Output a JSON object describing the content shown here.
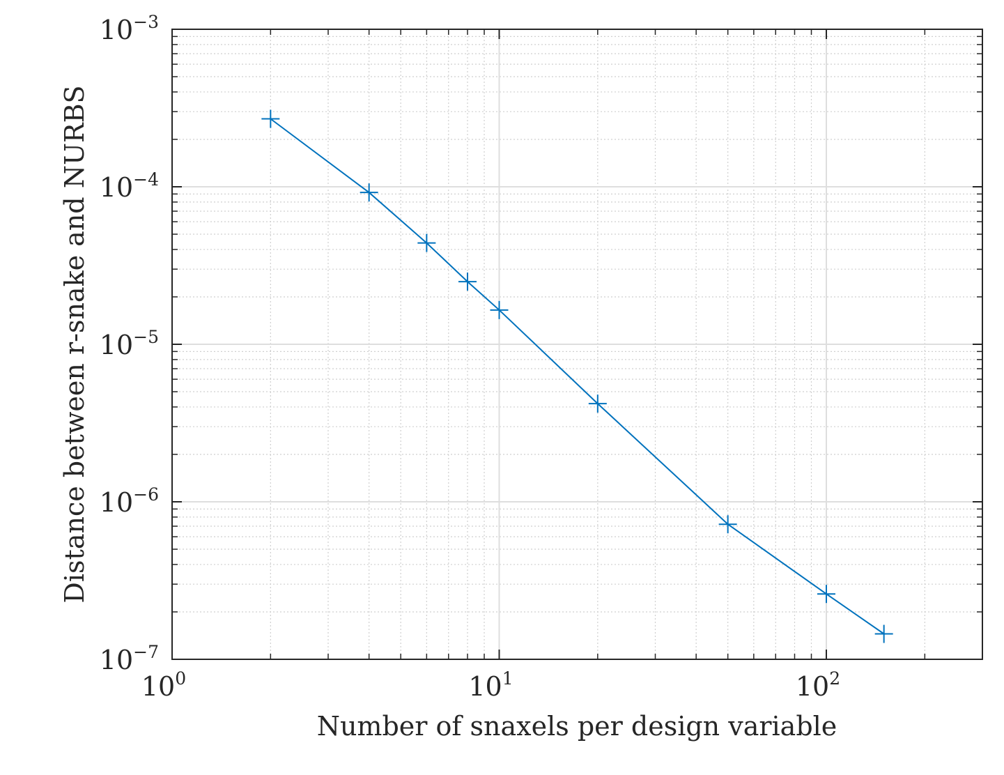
{
  "chart_data": {
    "type": "line",
    "xlabel": "Number of snaxels per design variable",
    "ylabel": "Distance between r-snake and NURBS",
    "x_scale": "log",
    "y_scale": "log",
    "xlim": [
      1,
      300
    ],
    "ylim": [
      1e-07,
      0.001
    ],
    "grid": "major and minor",
    "marker": "+",
    "series_color": "#0072BD",
    "x_ticks": [
      {
        "value": 1,
        "base": "10",
        "exp": "0"
      },
      {
        "value": 10,
        "base": "10",
        "exp": "1"
      },
      {
        "value": 100,
        "base": "10",
        "exp": "2"
      }
    ],
    "y_ticks": [
      {
        "value": 1e-07,
        "base": "10",
        "exp": "−7"
      },
      {
        "value": 1e-06,
        "base": "10",
        "exp": "−6"
      },
      {
        "value": 1e-05,
        "base": "10",
        "exp": "−5"
      },
      {
        "value": 0.0001,
        "base": "10",
        "exp": "−4"
      },
      {
        "value": 0.001,
        "base": "10",
        "exp": "−3"
      }
    ],
    "series": [
      {
        "x": [
          2,
          4,
          6,
          8,
          10,
          20,
          50,
          100,
          150
        ],
        "y": [
          0.00027,
          9.2e-05,
          4.4e-05,
          2.5e-05,
          1.65e-05,
          4.2e-06,
          7.2e-07,
          2.6e-07,
          1.45e-07
        ]
      }
    ]
  }
}
